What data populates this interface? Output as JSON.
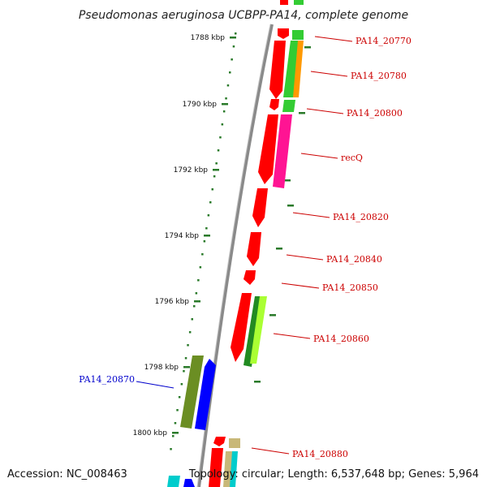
{
  "title": "Pseudomonas aeruginosa UCBPP-PA14, complete genome",
  "footer": {
    "accession": "Accession: NC_008463",
    "summary": "Topology: circular; Length: 6,537,648 bp; Genes: 5,964"
  },
  "scale_labels": [
    "1788 kbp",
    "1790 kbp",
    "1792 kbp",
    "1794 kbp",
    "1796 kbp",
    "1798 kbp",
    "1800 kbp"
  ],
  "gene_labels": [
    {
      "text": "PA14_20770",
      "strand": "plus"
    },
    {
      "text": "PA14_20780",
      "strand": "plus"
    },
    {
      "text": "PA14_20800",
      "strand": "plus"
    },
    {
      "text": "recQ",
      "strand": "plus"
    },
    {
      "text": "PA14_20820",
      "strand": "plus"
    },
    {
      "text": "PA14_20840",
      "strand": "plus"
    },
    {
      "text": "PA14_20850",
      "strand": "plus"
    },
    {
      "text": "PA14_20860",
      "strand": "plus"
    },
    {
      "text": "PA14_20870",
      "strand": "minus"
    },
    {
      "text": "PA14_20880",
      "strand": "plus"
    }
  ],
  "colors": {
    "plus_label": "#cc0000",
    "minus_label": "#0000cc",
    "scale_tick": "#2a7a2a",
    "genome_line": "#8a8a8a",
    "gene_red": "#ff0000",
    "gene_green": "#33cc33",
    "gene_orange": "#ff9900",
    "gene_pink": "#ff1493",
    "gene_darkgreen": "#228b22",
    "gene_lime": "#aaff33",
    "gene_olive": "#6b8e23",
    "gene_blue": "#0000ff",
    "gene_tan": "#c8b878",
    "gene_cyan": "#00cccc"
  }
}
